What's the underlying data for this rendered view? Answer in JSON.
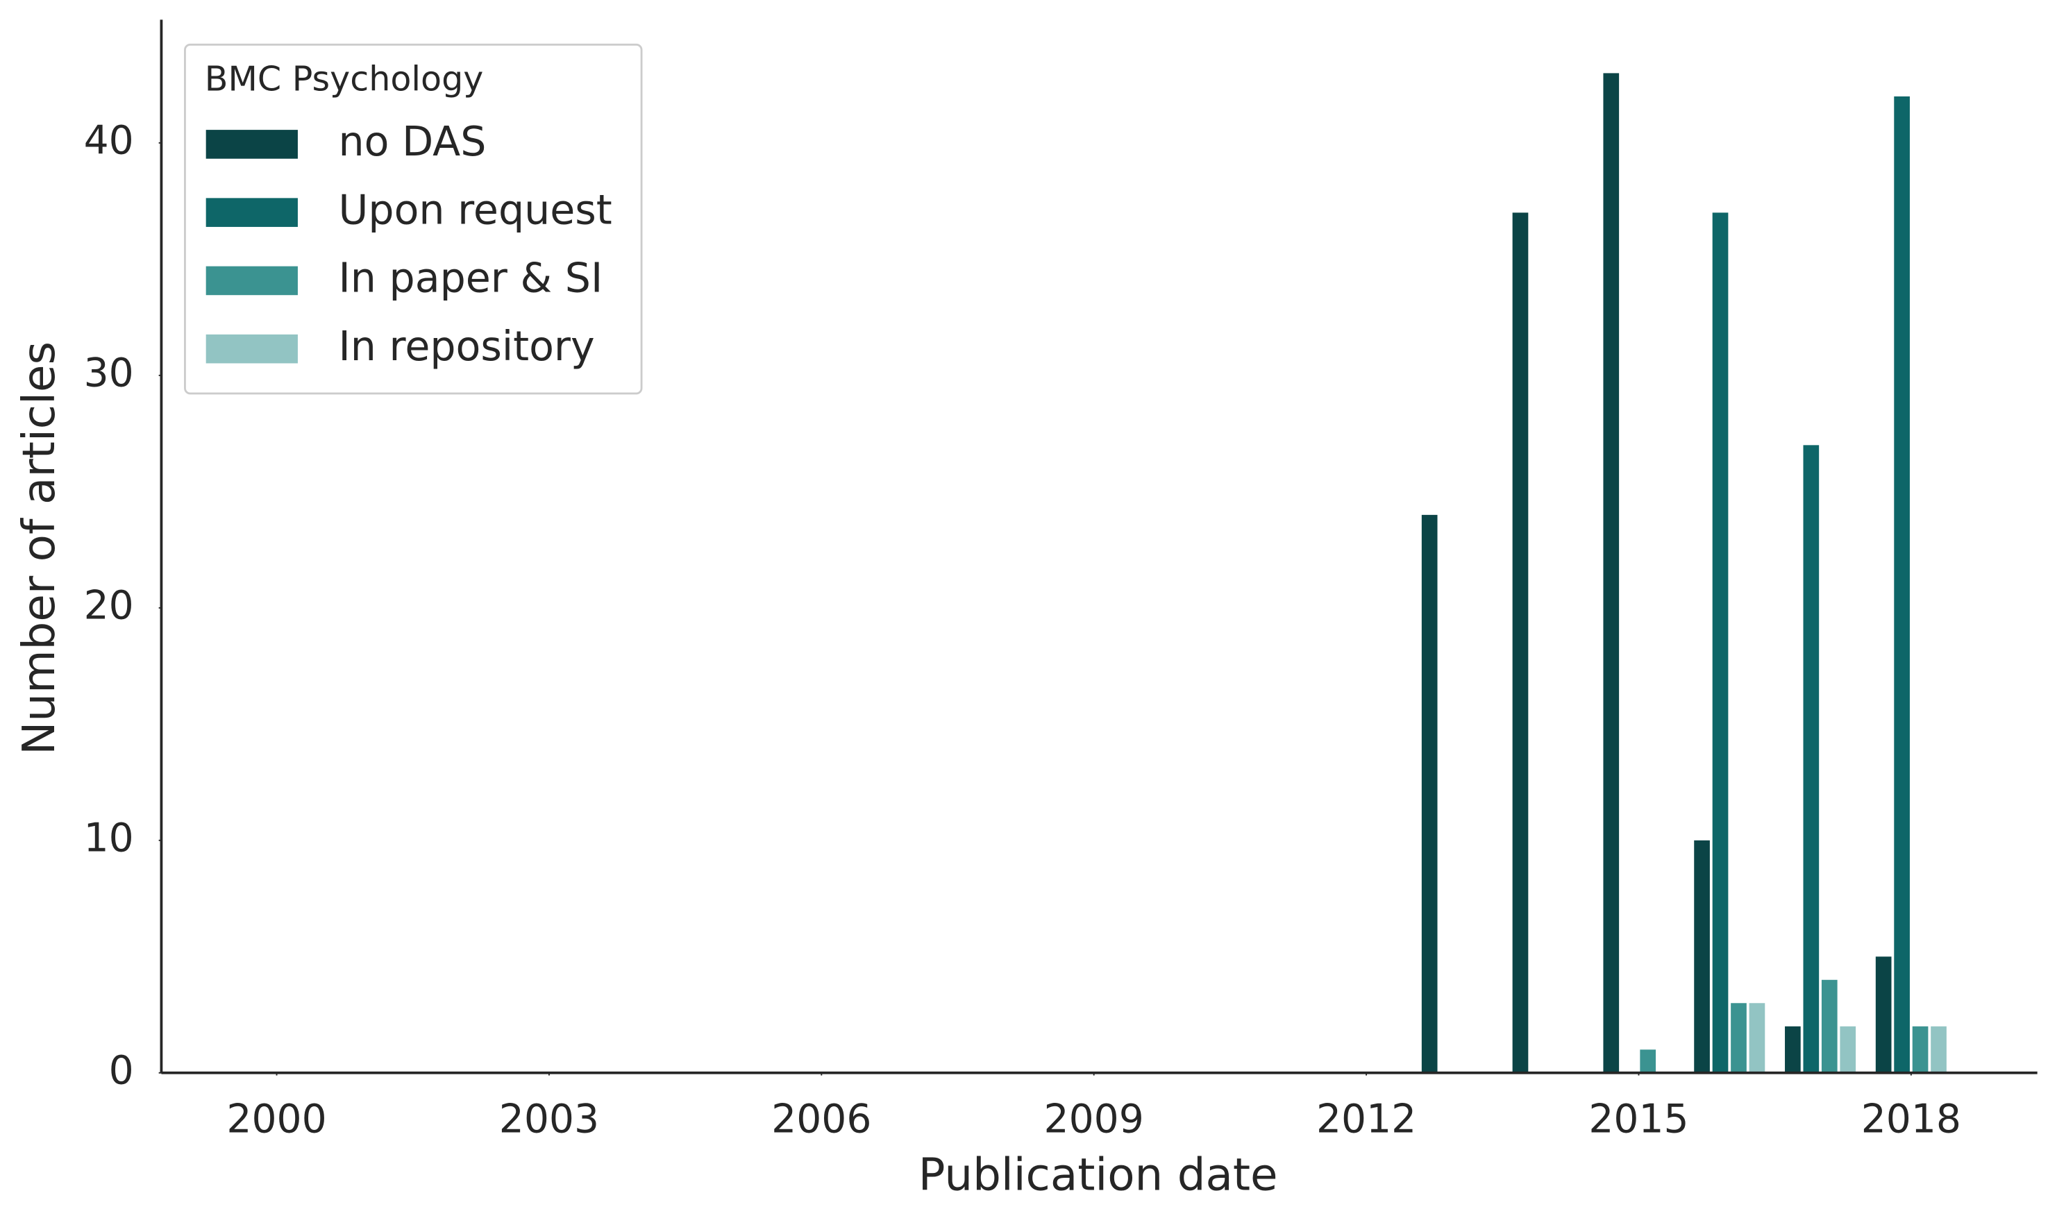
{
  "chart_data": {
    "type": "bar",
    "x_label": "Publication date",
    "y_label": "Number of articles",
    "legend_title": "BMC Psychology",
    "legend": "upper left",
    "x": [
      2013,
      2014,
      2015,
      2016,
      2017,
      2018
    ],
    "series": [
      {
        "name": "no DAS",
        "color": "#0b4446",
        "values": [
          24,
          37,
          43,
          10,
          2,
          5
        ]
      },
      {
        "name": "Upon request",
        "color": "#0e6668",
        "values": [
          0,
          0,
          0,
          37,
          27,
          42
        ]
      },
      {
        "name": "In paper & SI",
        "color": "#3b9391",
        "values": [
          0,
          0,
          1,
          3,
          4,
          2
        ]
      },
      {
        "name": "In repository",
        "color": "#92c4c3",
        "values": [
          0,
          0,
          0,
          3,
          2,
          2
        ]
      }
    ],
    "xlim": [
      1998.73,
      2019.39
    ],
    "xticks": [
      2000,
      2003,
      2006,
      2009,
      2012,
      2015,
      2018
    ],
    "ylim": [
      0,
      45.3
    ],
    "yticks": [
      0,
      10,
      20,
      30,
      40
    ]
  }
}
